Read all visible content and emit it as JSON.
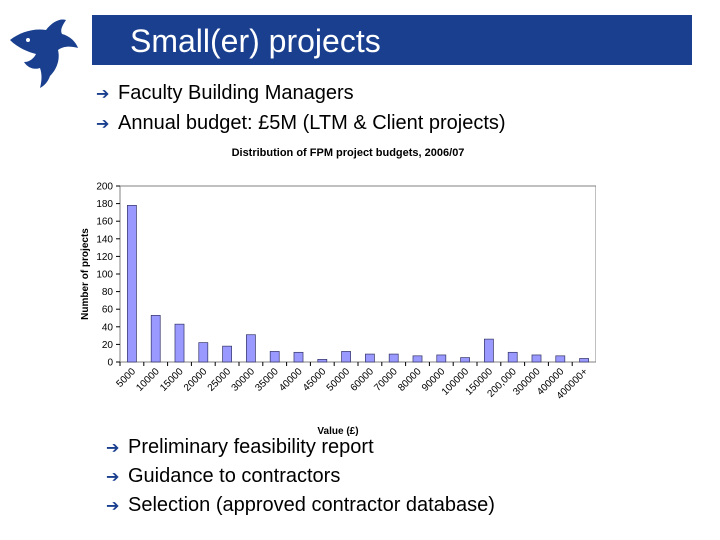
{
  "slide": {
    "title": "Small(er) projects",
    "bullets_top": [
      "Faculty Building Managers",
      "Annual budget: £5M (LTM & Client projects)"
    ],
    "bullets_bottom": [
      "Preliminary feasibility report",
      "Guidance to contractors",
      "Selection (approved contractor database)"
    ],
    "bullet_icon": "arrow-icon",
    "logo_icon": "dolphin-logo-icon"
  },
  "colors": {
    "title_bar": "#1a3f8f",
    "bar_fill": "#9999ff",
    "bar_stroke": "#333366"
  },
  "chart_data": {
    "type": "bar",
    "title": "Distribution of FPM project budgets, 2006/07",
    "xlabel": "Value (£)",
    "ylabel": "Number of projects",
    "categories": [
      "5000",
      "10000",
      "15000",
      "20000",
      "25000",
      "30000",
      "35000",
      "40000",
      "45000",
      "50000",
      "60000",
      "70000",
      "80000",
      "90000",
      "100000",
      "150000",
      "200,000",
      "300000",
      "400000",
      "400000+"
    ],
    "values": [
      178,
      53,
      43,
      22,
      18,
      31,
      12,
      11,
      3,
      12,
      9,
      9,
      7,
      8,
      5,
      26,
      11,
      8,
      7,
      4
    ],
    "ylim": [
      0,
      200
    ],
    "yticks": [
      "0",
      "20",
      "40",
      "60",
      "80",
      "100",
      "120",
      "140",
      "160",
      "180",
      "200"
    ],
    "grid": false,
    "legend": "none"
  }
}
